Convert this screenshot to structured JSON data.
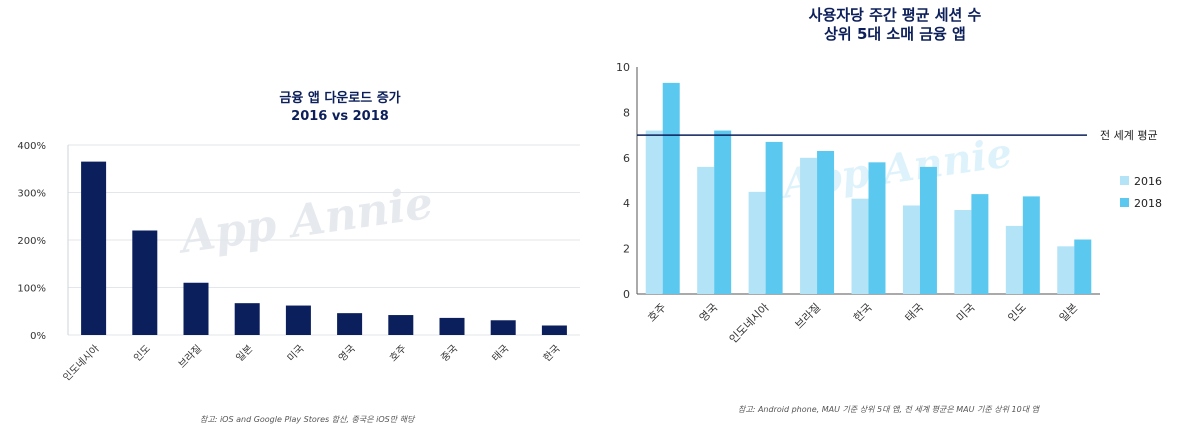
{
  "chart_data": [
    {
      "type": "bar",
      "title": "금융 앱 다운로드 증가",
      "subtitle": "2016 vs 2018",
      "categories": [
        "인도네시아",
        "인도",
        "브라질",
        "일본",
        "미국",
        "영국",
        "호주",
        "중국",
        "태국",
        "한국"
      ],
      "values": [
        365,
        220,
        110,
        67,
        62,
        46,
        42,
        36,
        31,
        20
      ],
      "yticks": [
        "0%",
        "100%",
        "200%",
        "300%",
        "400%"
      ],
      "ylim": [
        0,
        400
      ],
      "bar_color": "#0a1f5c",
      "grid": true,
      "watermark": "App Annie",
      "note": "참고: iOS and Google Play Stores 합산, 중국은 iOS만 해당"
    },
    {
      "type": "bar",
      "title": "사용자당 주간 평균 세션 수",
      "subtitle": "상위 5대 소매 금융 앱",
      "categories": [
        "호주",
        "영국",
        "인도네시아",
        "브라질",
        "한국",
        "태국",
        "미국",
        "인도",
        "일본"
      ],
      "series": [
        {
          "name": "2016",
          "color": "#b3e3f6",
          "values": [
            7.2,
            5.6,
            4.5,
            6.0,
            4.2,
            3.9,
            3.7,
            3.0,
            2.1
          ]
        },
        {
          "name": "2018",
          "color": "#5bc8ef",
          "values": [
            9.3,
            7.2,
            6.7,
            6.3,
            5.8,
            5.6,
            4.4,
            4.3,
            2.4
          ]
        }
      ],
      "reference_line": {
        "label": "전 세계 평균",
        "value": 7.0,
        "color": "#0c1f5a"
      },
      "yticks": [
        "0",
        "2",
        "4",
        "6",
        "8",
        "10"
      ],
      "ylim": [
        0,
        10
      ],
      "legend_position": "right",
      "watermark": "App Annie",
      "note": "참고: Android phone, MAU 기준 상위 5대 앱, 전 세계 평균은 MAU 기준 상위 10대 앱"
    }
  ]
}
